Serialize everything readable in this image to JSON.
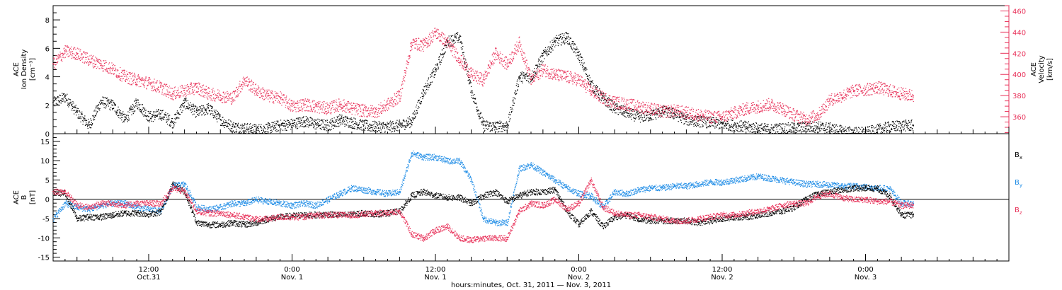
{
  "chart_data": [
    {
      "type": "scatter",
      "panel": "top",
      "title": "",
      "xlabel": "hours:minutes, Oct. 31, 2011 — Nov. 3, 2011",
      "x_ticks": [
        {
          "hour": 12,
          "time": "12:00",
          "date": "Oct.31"
        },
        {
          "hour": 24,
          "time": "0:00",
          "date": "Nov. 1"
        },
        {
          "hour": 36,
          "time": "12:00",
          "date": "Nov. 1"
        },
        {
          "hour": 48,
          "time": "0:00",
          "date": "Nov. 2"
        },
        {
          "hour": 60,
          "time": "12:00",
          "date": "Nov. 2"
        },
        {
          "hour": 72,
          "time": "0:00",
          "date": "Nov. 3"
        }
      ],
      "xlim": [
        4,
        84
      ],
      "left_axis": {
        "label_lines": [
          "ACE",
          "Ion Density"
        ],
        "unit": "[cm⁻³]",
        "ylim": [
          0,
          9
        ],
        "ticks": [
          0,
          2,
          4,
          6,
          8
        ],
        "color": "#000000"
      },
      "right_axis": {
        "label_lines": [
          "ACE",
          "Velocity"
        ],
        "unit": "[km/s]",
        "ylim": [
          344,
          465
        ],
        "ticks": [
          360,
          380,
          400,
          420,
          440,
          460
        ],
        "color": "#e8325a"
      },
      "series": [
        {
          "color": "#000000",
          "axis": "left",
          "x": [
            4,
            5,
            6,
            7,
            8,
            9,
            10,
            11,
            12,
            13,
            14,
            15,
            16,
            17,
            18,
            19,
            20,
            21,
            22,
            23,
            24,
            25,
            26,
            27,
            28,
            29,
            30,
            31,
            32,
            33,
            34,
            35,
            36,
            37,
            38,
            39,
            40,
            41,
            42,
            43,
            44,
            45,
            46,
            47,
            48,
            49,
            50,
            51,
            52,
            53,
            54,
            55,
            56,
            57,
            58,
            59,
            60,
            61,
            62,
            63,
            64,
            65,
            66,
            67,
            68,
            69,
            70,
            71,
            72,
            73,
            74,
            75,
            76
          ],
          "y": [
            2.2,
            2.6,
            1.5,
            0.6,
            2.3,
            2.0,
            1.0,
            2.2,
            1.2,
            1.4,
            0.8,
            2.2,
            1.5,
            1.8,
            1.0,
            0.5,
            0.4,
            0.3,
            0.4,
            0.6,
            0.7,
            0.9,
            0.7,
            0.6,
            1.0,
            0.8,
            0.6,
            0.5,
            0.5,
            0.6,
            0.9,
            3.0,
            4.5,
            6.5,
            6.8,
            3.0,
            0.6,
            0.5,
            0.6,
            4.0,
            4.0,
            5.5,
            6.5,
            6.8,
            5.5,
            3.5,
            2.5,
            1.8,
            1.5,
            1.2,
            1.3,
            1.6,
            1.4,
            1.0,
            0.9,
            0.8,
            0.7,
            0.6,
            0.5,
            0.4,
            0.3,
            0.4,
            0.4,
            0.5,
            0.5,
            0.4,
            0.2,
            0.1,
            0.1,
            0.3,
            0.5,
            0.6,
            0.6
          ]
        },
        {
          "color": "#e8325a",
          "axis": "right",
          "x": [
            4,
            5,
            6,
            7,
            8,
            9,
            10,
            11,
            12,
            13,
            14,
            15,
            16,
            17,
            18,
            19,
            20,
            21,
            22,
            23,
            24,
            25,
            26,
            27,
            28,
            29,
            30,
            31,
            32,
            33,
            34,
            35,
            36,
            37,
            38,
            39,
            40,
            41,
            42,
            43,
            44,
            45,
            46,
            47,
            48,
            49,
            50,
            51,
            52,
            53,
            54,
            55,
            56,
            57,
            58,
            59,
            60,
            61,
            62,
            63,
            64,
            65,
            66,
            67,
            68,
            69,
            70,
            71,
            72,
            73,
            74,
            75,
            76
          ],
          "y": [
            410,
            422,
            420,
            414,
            410,
            405,
            398,
            395,
            392,
            388,
            382,
            385,
            388,
            382,
            380,
            378,
            395,
            385,
            380,
            378,
            370,
            372,
            370,
            368,
            372,
            368,
            366,
            365,
            372,
            380,
            430,
            428,
            440,
            430,
            415,
            400,
            395,
            420,
            410,
            430,
            395,
            405,
            400,
            398,
            395,
            385,
            378,
            374,
            372,
            370,
            368,
            365,
            366,
            364,
            362,
            360,
            360,
            364,
            368,
            370,
            372,
            368,
            362,
            358,
            362,
            376,
            380,
            385,
            386,
            388,
            385,
            382,
            380
          ]
        }
      ]
    },
    {
      "type": "scatter",
      "panel": "bottom",
      "title": "",
      "xlim": [
        4,
        84
      ],
      "left_axis": {
        "label_lines": [
          "ACE",
          "B"
        ],
        "unit": "[nT]",
        "ylim": [
          -16,
          17
        ],
        "ticks": [
          -15,
          -10,
          -5,
          0,
          5,
          10,
          15
        ]
      },
      "legend": {
        "placement": "right",
        "entries": [
          {
            "base": "B",
            "sub": "x",
            "color": "#000000"
          },
          {
            "base": "B",
            "sub": "y",
            "color": "#1e8ce6"
          },
          {
            "base": "B",
            "sub": "z",
            "color": "#e8325a"
          }
        ]
      },
      "series": [
        {
          "name": "Bx",
          "color": "#000000",
          "x": [
            4,
            5,
            6,
            7,
            8,
            9,
            10,
            11,
            12,
            13,
            14,
            15,
            16,
            17,
            18,
            19,
            20,
            21,
            22,
            23,
            24,
            25,
            26,
            27,
            28,
            29,
            30,
            31,
            32,
            33,
            34,
            35,
            36,
            37,
            38,
            39,
            40,
            41,
            42,
            43,
            44,
            45,
            46,
            47,
            48,
            49,
            50,
            51,
            52,
            53,
            54,
            55,
            56,
            57,
            58,
            59,
            60,
            61,
            62,
            63,
            64,
            65,
            66,
            67,
            68,
            69,
            70,
            71,
            72,
            73,
            74,
            75,
            76
          ],
          "y": [
            2,
            1.5,
            -5,
            -4.5,
            -4.5,
            -4,
            -3.5,
            -3.5,
            -3.8,
            -3.2,
            4,
            2,
            -6,
            -6.5,
            -6.5,
            -6,
            -6.5,
            -6,
            -5,
            -4.5,
            -4.2,
            -4,
            -4,
            -3.8,
            -4,
            -3.8,
            -3.5,
            -3.8,
            -3.5,
            -3,
            1,
            2,
            1,
            0.5,
            0.5,
            -1,
            1,
            2,
            -0.5,
            1,
            2,
            2,
            2.5,
            -3,
            -6.5,
            -3,
            -7,
            -4.5,
            -4,
            -5,
            -5.5,
            -5.5,
            -5.5,
            -5.5,
            -6,
            -5.5,
            -5,
            -4.5,
            -4.5,
            -4,
            -3.5,
            -3,
            -2,
            0,
            1.5,
            2,
            2.5,
            3,
            3,
            2.8,
            1,
            -4,
            -4
          ]
        },
        {
          "name": "By",
          "color": "#1e8ce6",
          "x": [
            4,
            5,
            6,
            7,
            8,
            9,
            10,
            11,
            12,
            13,
            14,
            15,
            16,
            17,
            18,
            19,
            20,
            21,
            22,
            23,
            24,
            25,
            26,
            27,
            28,
            29,
            30,
            31,
            32,
            33,
            34,
            35,
            36,
            37,
            38,
            39,
            40,
            41,
            42,
            43,
            44,
            45,
            46,
            47,
            48,
            49,
            50,
            51,
            52,
            53,
            54,
            55,
            56,
            57,
            58,
            59,
            60,
            61,
            62,
            63,
            64,
            65,
            66,
            67,
            68,
            69,
            70,
            71,
            72,
            73,
            74,
            75,
            76
          ],
          "y": [
            -5,
            -1,
            -2,
            -2.5,
            -1.5,
            -1,
            -1,
            -2,
            -2.5,
            -3,
            3.5,
            4,
            -2,
            -2.5,
            -2,
            -1,
            -1,
            0,
            -0.5,
            -1,
            -1.5,
            -1,
            -1.5,
            0,
            1.5,
            3,
            2.5,
            2,
            1.5,
            2,
            12,
            11,
            11,
            10,
            10,
            5,
            -5,
            -6,
            -6,
            8,
            9,
            7,
            5,
            3,
            1.5,
            1,
            -2,
            2,
            1.5,
            2.5,
            3,
            3,
            3.5,
            3.5,
            4,
            4.5,
            4.5,
            5,
            5.5,
            6,
            5.5,
            5,
            4.5,
            4,
            4,
            3.8,
            3.5,
            3.5,
            3.3,
            3,
            2.8,
            -1,
            -1
          ]
        },
        {
          "name": "Bz",
          "color": "#e8325a",
          "x": [
            4,
            5,
            6,
            7,
            8,
            9,
            10,
            11,
            12,
            13,
            14,
            15,
            16,
            17,
            18,
            19,
            20,
            21,
            22,
            23,
            24,
            25,
            26,
            27,
            28,
            29,
            30,
            31,
            32,
            33,
            34,
            35,
            36,
            37,
            38,
            39,
            40,
            41,
            42,
            43,
            44,
            45,
            46,
            47,
            48,
            49,
            50,
            51,
            52,
            53,
            54,
            55,
            56,
            57,
            58,
            59,
            60,
            61,
            62,
            63,
            64,
            65,
            66,
            67,
            68,
            69,
            70,
            71,
            72,
            73,
            74,
            75,
            76
          ],
          "y": [
            2,
            2,
            -1.5,
            -2,
            -1,
            -1,
            -1.5,
            -1,
            -1,
            -1,
            3,
            2,
            -3,
            -3.5,
            -3.5,
            -4,
            -4.5,
            -5,
            -5,
            -4.5,
            -4.5,
            -4.5,
            -4,
            -4,
            -4,
            -4,
            -3.8,
            -3.5,
            -3.5,
            -3,
            -9,
            -10,
            -8,
            -7,
            -10,
            -10.5,
            -10,
            -10,
            -10,
            -3,
            -1,
            -1.5,
            0,
            -2.5,
            -1,
            5,
            -2,
            -3.5,
            -4,
            -4,
            -4.5,
            -5,
            -5.5,
            -5.5,
            -5,
            -4.5,
            -4,
            -4,
            -3.5,
            -3,
            -2.5,
            -1.5,
            -1,
            -1,
            1,
            1.5,
            0.5,
            0,
            0,
            -0.5,
            -0.5,
            -1.5,
            -1.5
          ]
        }
      ]
    }
  ]
}
